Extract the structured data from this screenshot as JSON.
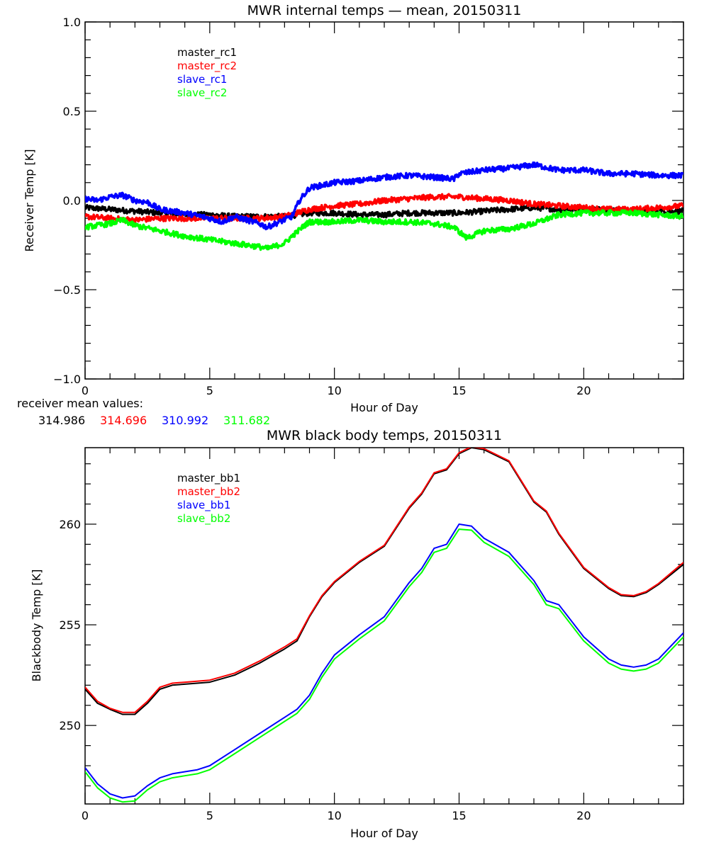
{
  "chart_data": [
    {
      "type": "line",
      "title": "MWR internal temps — mean, 20150311",
      "xlabel": "Hour of Day",
      "ylabel": "Receiver Temp [K]",
      "xlim": [
        0,
        24
      ],
      "ylim": [
        -1.0,
        1.0
      ],
      "xticks": [
        0,
        5,
        10,
        15,
        20
      ],
      "xtick_labels": [
        "0",
        "5",
        "10",
        "15",
        "20"
      ],
      "yticks": [
        -1.0,
        -0.5,
        0.0,
        0.5,
        1.0
      ],
      "ytick_labels": [
        "−1.0",
        "−0.5",
        "0.0",
        "0.5",
        "1.0"
      ],
      "x_minor_step": 1,
      "y_minor_step": 0.1,
      "grid": false,
      "legend_position": "top-left-inside",
      "noisy": true,
      "series": [
        {
          "name": "master_rc1",
          "color": "#000000",
          "x": [
            0,
            1,
            2,
            3,
            4,
            5,
            6,
            7,
            8,
            9,
            10,
            11,
            12,
            13,
            14,
            15,
            16,
            17,
            18,
            19,
            20,
            21,
            22,
            23,
            24
          ],
          "y": [
            -0.04,
            -0.05,
            -0.06,
            -0.07,
            -0.08,
            -0.08,
            -0.09,
            -0.09,
            -0.09,
            -0.07,
            -0.07,
            -0.08,
            -0.08,
            -0.07,
            -0.07,
            -0.07,
            -0.06,
            -0.05,
            -0.04,
            -0.05,
            -0.05,
            -0.05,
            -0.06,
            -0.06,
            -0.06
          ]
        },
        {
          "name": "master_rc2",
          "color": "#ff0000",
          "x": [
            0,
            1,
            2,
            3,
            4,
            5,
            6,
            7,
            8,
            9,
            10,
            11,
            12,
            13,
            14,
            15,
            16,
            17,
            18,
            19,
            20,
            21,
            22,
            23,
            24
          ],
          "y": [
            -0.09,
            -0.1,
            -0.11,
            -0.1,
            -0.1,
            -0.1,
            -0.1,
            -0.1,
            -0.09,
            -0.05,
            -0.03,
            -0.02,
            0.0,
            0.01,
            0.02,
            0.02,
            0.01,
            0.0,
            -0.02,
            -0.03,
            -0.04,
            -0.05,
            -0.05,
            -0.04,
            -0.03
          ]
        },
        {
          "name": "slave_rc1",
          "color": "#0000ff",
          "x": [
            0,
            0.5,
            1,
            1.5,
            2,
            2.5,
            3,
            4,
            5,
            5.5,
            6,
            6.5,
            7,
            7.3,
            7.8,
            8.3,
            8.6,
            9,
            10,
            11,
            12,
            13,
            14,
            14.8,
            15,
            16,
            17,
            18,
            19,
            20,
            21,
            22,
            23,
            24
          ],
          "y": [
            0.01,
            0.0,
            0.02,
            0.03,
            0.0,
            -0.01,
            -0.05,
            -0.07,
            -0.1,
            -0.12,
            -0.09,
            -0.11,
            -0.13,
            -0.15,
            -0.12,
            -0.09,
            0.0,
            0.07,
            0.1,
            0.11,
            0.13,
            0.14,
            0.13,
            0.12,
            0.15,
            0.17,
            0.18,
            0.2,
            0.17,
            0.17,
            0.15,
            0.15,
            0.14,
            0.14
          ]
        },
        {
          "name": "slave_rc2",
          "color": "#00ff00",
          "x": [
            0,
            1,
            1.5,
            2,
            3,
            4,
            5,
            6,
            7,
            7.3,
            8,
            8.3,
            8.8,
            9,
            10,
            11,
            12,
            13,
            14,
            14.8,
            15.3,
            16,
            17,
            18,
            19,
            20,
            21,
            22,
            23,
            24
          ],
          "y": [
            -0.15,
            -0.13,
            -0.11,
            -0.14,
            -0.17,
            -0.2,
            -0.22,
            -0.24,
            -0.26,
            -0.27,
            -0.24,
            -0.2,
            -0.14,
            -0.12,
            -0.12,
            -0.11,
            -0.12,
            -0.12,
            -0.13,
            -0.15,
            -0.21,
            -0.17,
            -0.16,
            -0.13,
            -0.08,
            -0.07,
            -0.07,
            -0.07,
            -0.08,
            -0.09
          ]
        }
      ],
      "annotations": [
        {
          "text": "receiver mean values:"
        }
      ],
      "mean_values": [
        {
          "series": "master_rc1",
          "value": "314.986",
          "color": "#000000"
        },
        {
          "series": "master_rc2",
          "value": "314.696",
          "color": "#ff0000"
        },
        {
          "series": "slave_rc1",
          "value": "310.992",
          "color": "#0000ff"
        },
        {
          "series": "slave_rc2",
          "value": "311.682",
          "color": "#00ff00"
        }
      ]
    },
    {
      "type": "line",
      "title": "MWR black body temps, 20150311",
      "xlabel": "Hour of Day",
      "ylabel": "Blackbody Temp [K]",
      "xlim": [
        0,
        24
      ],
      "ylim": [
        246.1,
        263.8
      ],
      "xticks": [
        0,
        5,
        10,
        15,
        20
      ],
      "xtick_labels": [
        "0",
        "5",
        "10",
        "15",
        "20"
      ],
      "yticks": [
        250,
        255,
        260
      ],
      "ytick_labels": [
        "250",
        "255",
        "260"
      ],
      "x_minor_step": 1,
      "y_minor_step": 1,
      "grid": false,
      "legend_position": "top-left-inside",
      "noisy": false,
      "series": [
        {
          "name": "master_bb1",
          "color": "#000000",
          "x": [
            0,
            0.5,
            1,
            1.5,
            2,
            2.5,
            3,
            3.5,
            4,
            5,
            6,
            7,
            8,
            8.5,
            9,
            9.5,
            10,
            11,
            12,
            13,
            13.5,
            14,
            14.5,
            15,
            15.5,
            16,
            17,
            18,
            18.5,
            19,
            20,
            21,
            21.5,
            22,
            22.5,
            23,
            24
          ],
          "y": [
            251.8,
            251.1,
            250.8,
            250.55,
            250.55,
            251.1,
            251.8,
            252.0,
            252.05,
            252.15,
            252.5,
            253.1,
            253.8,
            254.2,
            255.4,
            256.4,
            257.1,
            258.1,
            258.9,
            260.8,
            261.5,
            262.5,
            262.7,
            263.5,
            263.8,
            263.7,
            263.1,
            261.1,
            260.6,
            259.5,
            257.8,
            256.8,
            256.45,
            256.4,
            256.6,
            257.0,
            258.0
          ]
        },
        {
          "name": "master_bb2",
          "color": "#ff0000",
          "x": [
            0,
            0.5,
            1,
            1.5,
            2,
            2.5,
            3,
            3.5,
            4,
            5,
            6,
            7,
            8,
            8.5,
            9,
            9.5,
            10,
            11,
            12,
            13,
            13.5,
            14,
            14.5,
            15,
            15.5,
            16,
            17,
            18,
            18.5,
            19,
            20,
            21,
            21.5,
            22,
            22.5,
            23,
            24
          ],
          "y": [
            251.9,
            251.2,
            250.85,
            250.65,
            250.65,
            251.2,
            251.9,
            252.1,
            252.15,
            252.25,
            252.6,
            253.2,
            253.9,
            254.3,
            255.45,
            256.45,
            257.15,
            258.15,
            258.95,
            260.85,
            261.55,
            262.55,
            262.75,
            263.55,
            263.85,
            263.75,
            263.15,
            261.15,
            260.65,
            259.55,
            257.85,
            256.85,
            256.5,
            256.45,
            256.65,
            257.05,
            258.1
          ]
        },
        {
          "name": "slave_bb1",
          "color": "#0000ff",
          "x": [
            0,
            0.5,
            1,
            1.5,
            2,
            2.5,
            3,
            3.5,
            4,
            4.5,
            5,
            6,
            7,
            8,
            8.5,
            9,
            9.5,
            10,
            11,
            12,
            13,
            13.5,
            14,
            14.5,
            15,
            15.5,
            16,
            17,
            18,
            18.5,
            19,
            20,
            21,
            21.5,
            22,
            22.5,
            23,
            24
          ],
          "y": [
            247.9,
            247.1,
            246.6,
            246.4,
            246.5,
            247.0,
            247.4,
            247.6,
            247.7,
            247.8,
            248.0,
            248.8,
            249.6,
            250.4,
            250.8,
            251.5,
            252.6,
            253.5,
            254.5,
            255.4,
            257.1,
            257.8,
            258.8,
            259.0,
            260.0,
            259.9,
            259.3,
            258.6,
            257.2,
            256.2,
            256.0,
            254.4,
            253.3,
            253.0,
            252.9,
            253.0,
            253.3,
            254.6
          ]
        },
        {
          "name": "slave_bb2",
          "color": "#00ff00",
          "x": [
            0,
            0.5,
            1,
            1.5,
            2,
            2.5,
            3,
            3.5,
            4,
            4.5,
            5,
            6,
            7,
            8,
            8.5,
            9,
            9.5,
            10,
            11,
            12,
            13,
            13.5,
            14,
            14.5,
            15,
            15.5,
            16,
            17,
            18,
            18.5,
            19,
            20,
            21,
            21.5,
            22,
            22.5,
            23,
            24
          ],
          "y": [
            247.7,
            246.9,
            246.4,
            246.2,
            246.25,
            246.8,
            247.2,
            247.4,
            247.5,
            247.6,
            247.8,
            248.6,
            249.4,
            250.2,
            250.6,
            251.3,
            252.4,
            253.3,
            254.3,
            255.2,
            256.9,
            257.6,
            258.6,
            258.8,
            259.75,
            259.7,
            259.1,
            258.4,
            257.0,
            256.0,
            255.8,
            254.2,
            253.1,
            252.8,
            252.7,
            252.8,
            253.1,
            254.4
          ]
        }
      ]
    }
  ]
}
